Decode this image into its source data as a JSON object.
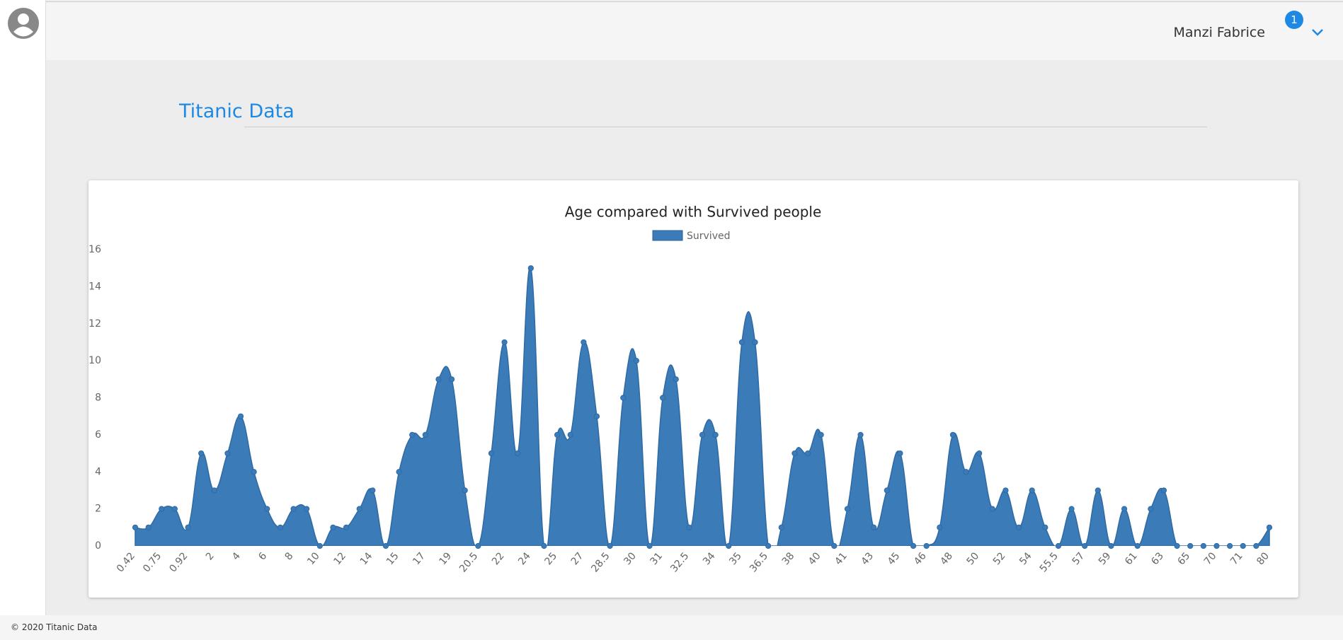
{
  "header": {
    "user": "Manzi Fabrice",
    "badge": "1"
  },
  "page_title": "Titanic Data",
  "footer": "© 2020 Titanic Data",
  "chart_data": {
    "type": "area",
    "title": "Age compared with Survived people",
    "legend": "top",
    "categories": [
      "0.42",
      null,
      "0.75",
      null,
      "0.92",
      null,
      "2",
      null,
      "4",
      null,
      "6",
      null,
      "8",
      null,
      "10",
      null,
      "12",
      null,
      "14",
      null,
      "15",
      null,
      "17",
      null,
      "19",
      null,
      "20.5",
      null,
      "22",
      null,
      "24",
      null,
      "25",
      null,
      "27",
      null,
      "28.5",
      null,
      "30",
      null,
      "31",
      null,
      "32.5",
      null,
      "34",
      null,
      "35",
      null,
      "36.5",
      null,
      "38",
      null,
      "40",
      null,
      "41",
      null,
      "43",
      null,
      "45",
      null,
      "46",
      null,
      "48",
      null,
      "50",
      null,
      "52",
      null,
      "54",
      null,
      "55.5",
      null,
      "57",
      null,
      "59",
      null,
      "61",
      null,
      "63",
      null,
      "65",
      null,
      "70",
      null,
      "71",
      null,
      "80"
    ],
    "series": [
      {
        "name": "Survived",
        "color": "#3a7bb8",
        "values": [
          1,
          1,
          2,
          2,
          1,
          5,
          3,
          5,
          7,
          4,
          2,
          1,
          2,
          2,
          0,
          1,
          1,
          2,
          3,
          0,
          4,
          6,
          6,
          9,
          9,
          3,
          0,
          5,
          11,
          5,
          15,
          0,
          6,
          6,
          11,
          7,
          0,
          8,
          10,
          0,
          8,
          9,
          1,
          6,
          6,
          0,
          11,
          11,
          0,
          1,
          5,
          5,
          6,
          0,
          2,
          6,
          1,
          3,
          5,
          0,
          0,
          1,
          6,
          4,
          5,
          2,
          3,
          1,
          3,
          1,
          0,
          2,
          0,
          3,
          0,
          2,
          0,
          2,
          3,
          0,
          0,
          0,
          0,
          0,
          0,
          0,
          1
        ]
      }
    ],
    "ylim": [
      0,
      16
    ],
    "yticks": [
      0,
      2,
      4,
      6,
      8,
      10,
      12,
      14,
      16
    ],
    "grid": false
  }
}
